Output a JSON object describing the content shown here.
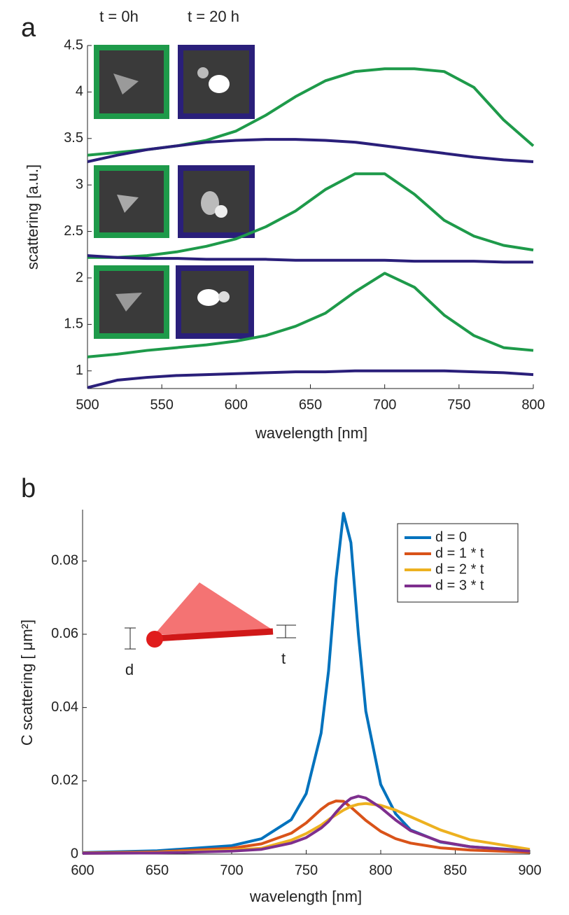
{
  "chart_data": [
    {
      "type": "line",
      "panel_label": "a",
      "annotations": [
        "t = 0h",
        "t = 20 h"
      ],
      "x_label": "wavelength [nm]",
      "y_label": "scattering [a.u.]",
      "xlim": [
        500,
        800
      ],
      "xticks": [
        500,
        550,
        600,
        650,
        700,
        750,
        800
      ],
      "ylim": [
        0.81,
        4.5
      ],
      "yticks": [
        1,
        1.5,
        2,
        2.5,
        3,
        3.5,
        4,
        4.5
      ],
      "x": [
        500,
        520,
        540,
        560,
        580,
        600,
        620,
        640,
        660,
        680,
        700,
        720,
        740,
        760,
        780,
        800
      ],
      "series": [
        {
          "color": "#1e9a4a",
          "values": [
            3.32,
            3.35,
            3.38,
            3.42,
            3.48,
            3.58,
            3.75,
            3.95,
            4.12,
            4.22,
            4.25,
            4.25,
            4.22,
            4.05,
            3.7,
            3.42
          ]
        },
        {
          "color": "#2a1f7a",
          "values": [
            3.25,
            3.32,
            3.38,
            3.42,
            3.46,
            3.48,
            3.49,
            3.49,
            3.48,
            3.46,
            3.42,
            3.38,
            3.34,
            3.3,
            3.27,
            3.25
          ]
        },
        {
          "color": "#1e9a4a",
          "values": [
            2.22,
            2.22,
            2.24,
            2.28,
            2.34,
            2.42,
            2.55,
            2.72,
            2.95,
            3.12,
            3.12,
            2.9,
            2.62,
            2.45,
            2.35,
            2.3
          ]
        },
        {
          "color": "#2a1f7a",
          "values": [
            2.24,
            2.22,
            2.21,
            2.21,
            2.2,
            2.2,
            2.2,
            2.19,
            2.19,
            2.19,
            2.19,
            2.18,
            2.18,
            2.18,
            2.17,
            2.17
          ]
        },
        {
          "color": "#1e9a4a",
          "values": [
            1.15,
            1.18,
            1.22,
            1.25,
            1.28,
            1.32,
            1.38,
            1.48,
            1.62,
            1.85,
            2.05,
            1.9,
            1.6,
            1.38,
            1.25,
            1.22
          ]
        },
        {
          "color": "#2a1f7a",
          "values": [
            0.82,
            0.9,
            0.93,
            0.95,
            0.96,
            0.97,
            0.98,
            0.99,
            0.99,
            1.0,
            1.0,
            1.0,
            1.0,
            0.99,
            0.98,
            0.96
          ]
        }
      ]
    },
    {
      "type": "line",
      "panel_label": "b",
      "annotations": [
        "d",
        "t"
      ],
      "x_label": "wavelength [nm]",
      "y_label": "C scattering [ μm²]",
      "xlim": [
        600,
        900
      ],
      "xticks": [
        600,
        650,
        700,
        750,
        800,
        850,
        900
      ],
      "ylim": [
        0,
        0.094
      ],
      "yticks": [
        0,
        0.02,
        0.04,
        0.06,
        0.08
      ],
      "legend": "upper right",
      "x": [
        600,
        650,
        700,
        720,
        740,
        750,
        760,
        765,
        770,
        775,
        780,
        785,
        790,
        800,
        810,
        820,
        840,
        860,
        900
      ],
      "series": [
        {
          "name": "d = 0",
          "color": "#0072bd",
          "values": [
            0.0004,
            0.0009,
            0.0023,
            0.0042,
            0.0094,
            0.0165,
            0.033,
            0.05,
            0.075,
            0.093,
            0.085,
            0.06,
            0.039,
            0.019,
            0.011,
            0.0066,
            0.0033,
            0.002,
            0.0009
          ]
        },
        {
          "name": "d = 1 * t",
          "color": "#d95319",
          "values": [
            0.0003,
            0.0006,
            0.0016,
            0.0028,
            0.0057,
            0.0085,
            0.0122,
            0.0137,
            0.0145,
            0.0144,
            0.0128,
            0.011,
            0.0092,
            0.0062,
            0.0042,
            0.003,
            0.0017,
            0.0011,
            0.0005
          ]
        },
        {
          "name": "d = 2 * t",
          "color": "#edb120",
          "values": [
            0.0002,
            0.0004,
            0.0011,
            0.0016,
            0.0038,
            0.0056,
            0.0079,
            0.0094,
            0.0107,
            0.012,
            0.013,
            0.0136,
            0.0138,
            0.0133,
            0.012,
            0.0102,
            0.0066,
            0.0039,
            0.0013
          ]
        },
        {
          "name": "d = 3 * t",
          "color": "#7e2f8e",
          "values": [
            0.0002,
            0.0003,
            0.0008,
            0.0013,
            0.003,
            0.0045,
            0.0071,
            0.0089,
            0.0114,
            0.0136,
            0.0152,
            0.0158,
            0.0153,
            0.0127,
            0.0093,
            0.0064,
            0.0034,
            0.002,
            0.0008
          ]
        }
      ]
    }
  ]
}
